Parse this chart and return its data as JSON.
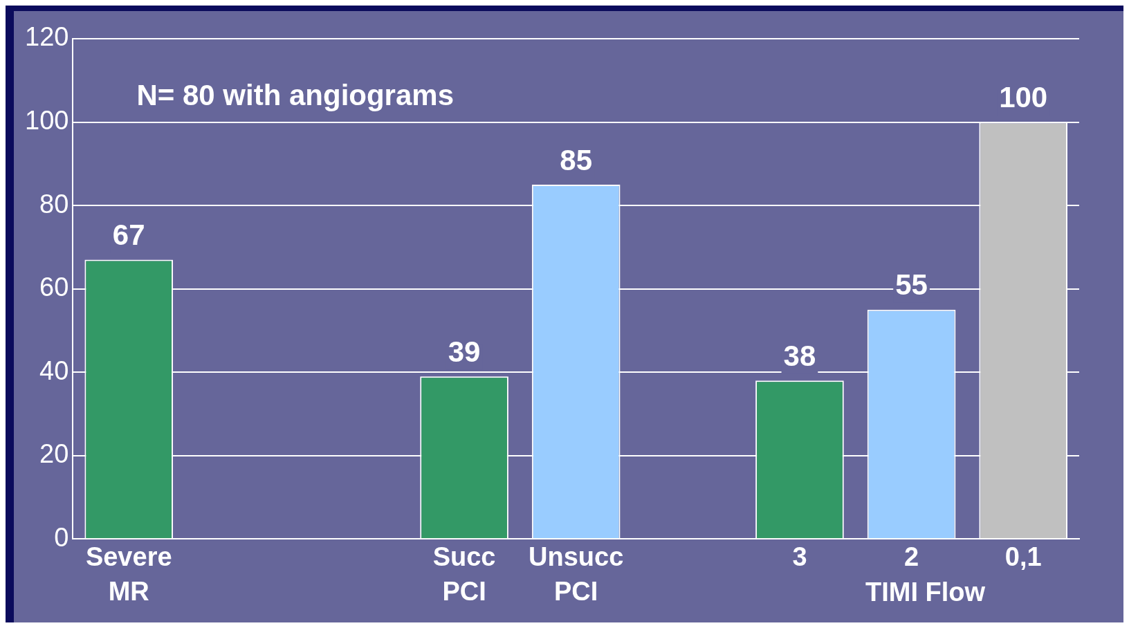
{
  "chart_data": {
    "type": "bar",
    "categories": [
      "Severe MR",
      null,
      null,
      "Succ PCI",
      "Unsucc PCI",
      null,
      "3",
      "2",
      "0,1"
    ],
    "values": [
      67,
      null,
      null,
      39,
      85,
      null,
      38,
      55,
      100
    ],
    "colors": [
      "#339966",
      null,
      null,
      "#339966",
      "#99ccff",
      null,
      "#339966",
      "#99ccff",
      "#c0c0c0"
    ],
    "ylim": [
      0,
      120
    ],
    "yticks": [
      0,
      20,
      40,
      60,
      80,
      100,
      120
    ],
    "grid": "y",
    "data_labels": true,
    "legend": false,
    "annotations": [
      "N= 80 with angiograms",
      "TIMI Flow"
    ]
  }
}
